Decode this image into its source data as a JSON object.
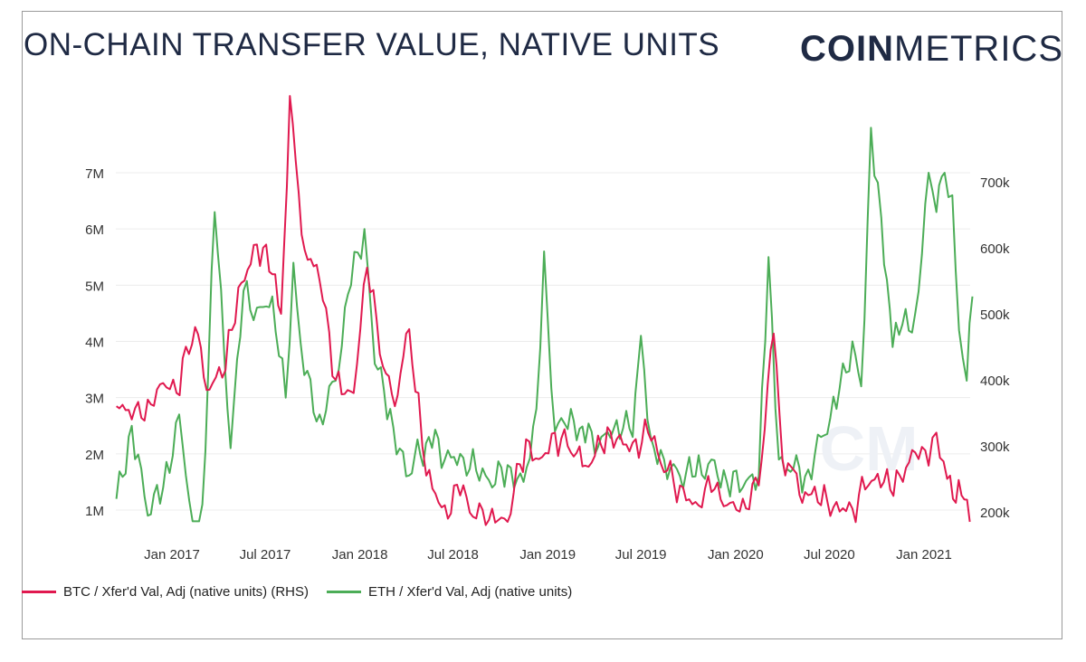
{
  "header": {
    "title": "ON-CHAIN TRANSFER VALUE, NATIVE UNITS",
    "logo_bold": "COIN",
    "logo_light": "METRICS"
  },
  "chart_data": {
    "type": "line",
    "title": "ON-CHAIN TRANSFER VALUE, NATIVE UNITS",
    "grid": true,
    "legend_position": "bottom-left",
    "x_axis": {
      "ticks": [
        "Jan 2017",
        "Jul 2017",
        "Jan 2018",
        "Jul 2018",
        "Jan 2019",
        "Jul 2019",
        "Jan 2020",
        "Jul 2020",
        "Jan 2021"
      ]
    },
    "y_left": {
      "ticks": [
        "1M",
        "2M",
        "3M",
        "4M",
        "5M",
        "6M",
        "7M"
      ],
      "range": [
        0.5,
        8.0
      ],
      "unit": "M"
    },
    "y_right": {
      "ticks": [
        "200k",
        "300k",
        "400k",
        "500k",
        "600k",
        "700k"
      ],
      "range": [
        150,
        840
      ],
      "unit": "k"
    },
    "series": [
      {
        "name": "BTC / Xfer'd Val, Adj (native units) (RHS)",
        "axis": "right",
        "color": "#e0194f",
        "points": [
          [
            "2016-09-15",
            360
          ],
          [
            "2016-10-15",
            340
          ],
          [
            "2016-11-15",
            370
          ],
          [
            "2016-12-15",
            395
          ],
          [
            "2017-01-10",
            380
          ],
          [
            "2017-02-15",
            480
          ],
          [
            "2017-03-15",
            385
          ],
          [
            "2017-04-15",
            415
          ],
          [
            "2017-05-10",
            540
          ],
          [
            "2017-06-15",
            605
          ],
          [
            "2017-07-15",
            560
          ],
          [
            "2017-08-01",
            500
          ],
          [
            "2017-08-18",
            830
          ],
          [
            "2017-09-10",
            620
          ],
          [
            "2017-10-15",
            550
          ],
          [
            "2017-11-15",
            400
          ],
          [
            "2017-12-20",
            380
          ],
          [
            "2018-01-15",
            570
          ],
          [
            "2018-02-15",
            420
          ],
          [
            "2018-03-10",
            360
          ],
          [
            "2018-04-01",
            470
          ],
          [
            "2018-04-25",
            380
          ],
          [
            "2018-05-10",
            255
          ],
          [
            "2018-06-15",
            210
          ],
          [
            "2018-07-15",
            225
          ],
          [
            "2018-08-15",
            190
          ],
          [
            "2018-09-15",
            205
          ],
          [
            "2018-10-15",
            185
          ],
          [
            "2018-11-20",
            310
          ],
          [
            "2018-12-15",
            280
          ],
          [
            "2019-01-15",
            320
          ],
          [
            "2019-02-15",
            290
          ],
          [
            "2019-03-15",
            270
          ],
          [
            "2019-04-15",
            300
          ],
          [
            "2019-05-15",
            310
          ],
          [
            "2019-06-15",
            305
          ],
          [
            "2019-07-15",
            320
          ],
          [
            "2019-08-15",
            260
          ],
          [
            "2019-09-15",
            240
          ],
          [
            "2019-10-15",
            215
          ],
          [
            "2019-11-15",
            230
          ],
          [
            "2019-12-15",
            210
          ],
          [
            "2020-01-15",
            220
          ],
          [
            "2020-02-15",
            240
          ],
          [
            "2020-03-15",
            470
          ],
          [
            "2020-04-01",
            280
          ],
          [
            "2020-05-15",
            230
          ],
          [
            "2020-06-15",
            210
          ],
          [
            "2020-07-15",
            215
          ],
          [
            "2020-08-15",
            205
          ],
          [
            "2020-09-15",
            240
          ],
          [
            "2020-10-15",
            245
          ],
          [
            "2020-11-15",
            255
          ],
          [
            "2020-12-15",
            290
          ],
          [
            "2021-01-10",
            270
          ],
          [
            "2021-01-25",
            320
          ],
          [
            "2021-02-15",
            250
          ],
          [
            "2021-03-15",
            225
          ],
          [
            "2021-03-31",
            185
          ]
        ]
      },
      {
        "name": "ETH / Xfer'd Val, Adj (native units)",
        "axis": "left",
        "color": "#4cad57",
        "points": [
          [
            "2016-09-15",
            1.2
          ],
          [
            "2016-10-15",
            2.5
          ],
          [
            "2016-11-15",
            0.9
          ],
          [
            "2016-12-15",
            1.4
          ],
          [
            "2017-01-15",
            2.7
          ],
          [
            "2017-02-10",
            0.8
          ],
          [
            "2017-03-01",
            1.1
          ],
          [
            "2017-03-25",
            6.3
          ],
          [
            "2017-04-25",
            2.1
          ],
          [
            "2017-05-20",
            4.9
          ],
          [
            "2017-06-15",
            4.6
          ],
          [
            "2017-07-15",
            4.8
          ],
          [
            "2017-08-10",
            3.0
          ],
          [
            "2017-08-25",
            5.4
          ],
          [
            "2017-09-15",
            3.4
          ],
          [
            "2017-10-15",
            2.7
          ],
          [
            "2017-11-15",
            3.3
          ],
          [
            "2017-12-15",
            5.0
          ],
          [
            "2018-01-10",
            6.0
          ],
          [
            "2018-01-30",
            3.6
          ],
          [
            "2018-03-01",
            2.8
          ],
          [
            "2018-04-01",
            1.6
          ],
          [
            "2018-05-15",
            2.3
          ],
          [
            "2018-06-15",
            1.9
          ],
          [
            "2018-07-15",
            2.0
          ],
          [
            "2018-08-15",
            1.7
          ],
          [
            "2018-09-15",
            1.4
          ],
          [
            "2018-10-15",
            1.8
          ],
          [
            "2018-11-15",
            1.5
          ],
          [
            "2018-12-10",
            2.8
          ],
          [
            "2018-12-25",
            5.6
          ],
          [
            "2019-01-15",
            2.4
          ],
          [
            "2019-02-15",
            2.8
          ],
          [
            "2019-03-15",
            2.2
          ],
          [
            "2019-04-15",
            2.3
          ],
          [
            "2019-05-15",
            2.6
          ],
          [
            "2019-06-15",
            2.3
          ],
          [
            "2019-07-01",
            4.1
          ],
          [
            "2019-07-20",
            2.3
          ],
          [
            "2019-08-15",
            1.9
          ],
          [
            "2019-09-15",
            1.6
          ],
          [
            "2019-10-15",
            1.6
          ],
          [
            "2019-11-15",
            1.9
          ],
          [
            "2019-12-15",
            1.5
          ],
          [
            "2020-01-15",
            1.4
          ],
          [
            "2020-02-15",
            1.6
          ],
          [
            "2020-03-05",
            5.5
          ],
          [
            "2020-03-25",
            1.9
          ],
          [
            "2020-05-15",
            1.6
          ],
          [
            "2020-06-15",
            2.3
          ],
          [
            "2020-07-15",
            2.8
          ],
          [
            "2020-08-15",
            4.0
          ],
          [
            "2020-09-01",
            3.2
          ],
          [
            "2020-09-20",
            7.8
          ],
          [
            "2020-10-10",
            6.2
          ],
          [
            "2020-11-01",
            3.9
          ],
          [
            "2020-11-20",
            4.3
          ],
          [
            "2020-12-15",
            4.5
          ],
          [
            "2021-01-10",
            7.0
          ],
          [
            "2021-01-25",
            6.3
          ],
          [
            "2021-02-10",
            7.0
          ],
          [
            "2021-02-25",
            6.6
          ],
          [
            "2021-03-10",
            4.2
          ],
          [
            "2021-03-25",
            3.3
          ],
          [
            "2021-04-05",
            4.8
          ]
        ]
      }
    ]
  },
  "legend": {
    "items": [
      {
        "label": "BTC / Xfer'd Val, Adj (native units) (RHS)",
        "color": "#e0194f"
      },
      {
        "label": "ETH / Xfer'd Val, Adj (native units)",
        "color": "#4cad57"
      }
    ]
  }
}
